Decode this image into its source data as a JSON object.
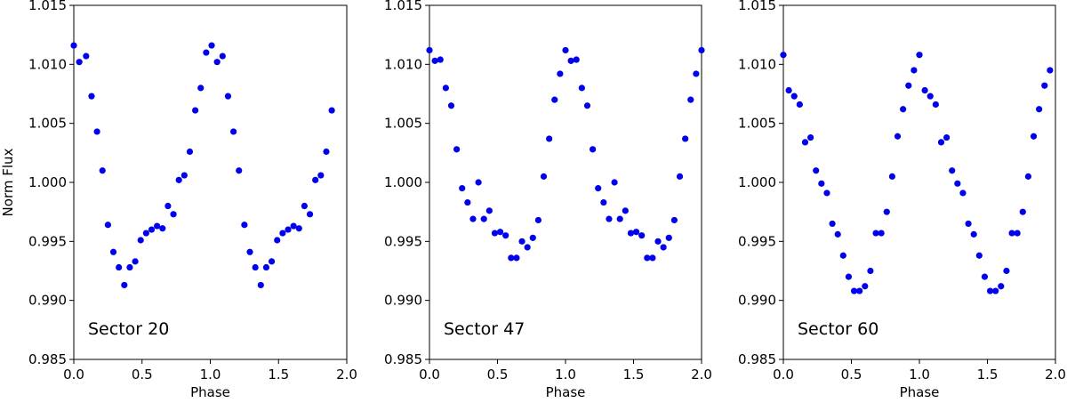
{
  "chart_data": [
    {
      "type": "scatter",
      "annotation": "Sector 20",
      "xlabel": "Phase",
      "ylabel": "Norm Flux",
      "xlim": [
        0.0,
        2.0
      ],
      "ylim": [
        0.985,
        1.015
      ],
      "xticks": [
        "0.0",
        "0.5",
        "1.0",
        "1.5",
        "2.0"
      ],
      "yticks": [
        "0.985",
        "0.990",
        "0.995",
        "1.000",
        "1.005",
        "1.010",
        "1.015"
      ],
      "color": "#0000ee",
      "series": [
        {
          "x": [
            0.0,
            0.04,
            0.09,
            0.13,
            0.17,
            0.21,
            0.25,
            0.29,
            0.33,
            0.37,
            0.41,
            0.45,
            0.49,
            0.53,
            0.57,
            0.61,
            0.65,
            0.69,
            0.73,
            0.77,
            0.81,
            0.85,
            0.89,
            0.93,
            0.97,
            1.01,
            1.05,
            1.09,
            1.13,
            1.17,
            1.21,
            1.25,
            1.29,
            1.33,
            1.37,
            1.41,
            1.45,
            1.49,
            1.53,
            1.57,
            1.61,
            1.65,
            1.69,
            1.73,
            1.77,
            1.81,
            1.85,
            1.89
          ],
          "y": [
            1.0116,
            1.0102,
            1.0107,
            1.0073,
            1.0043,
            1.001,
            0.9964,
            0.9941,
            0.9928,
            0.9913,
            0.9928,
            0.9933,
            0.9951,
            0.9957,
            0.996,
            0.9963,
            0.9961,
            0.998,
            0.9973,
            1.0002,
            1.0006,
            1.0026,
            1.0061,
            1.008,
            1.011,
            1.0116,
            1.0102,
            1.0107,
            1.0073,
            1.0043,
            1.001,
            0.9964,
            0.9941,
            0.9928,
            0.9913,
            0.9928,
            0.9933,
            0.9951,
            0.9957,
            0.996,
            0.9963,
            0.9961,
            0.998,
            0.9973,
            1.0002,
            1.0006,
            1.0026,
            1.0061
          ]
        }
      ]
    },
    {
      "type": "scatter",
      "annotation": "Sector 47",
      "xlabel": "Phase",
      "ylabel": "",
      "xlim": [
        0.0,
        2.0
      ],
      "ylim": [
        0.985,
        1.015
      ],
      "xticks": [
        "0.0",
        "0.5",
        "1.0",
        "1.5",
        "2.0"
      ],
      "yticks": [
        "0.985",
        "0.990",
        "0.995",
        "1.000",
        "1.005",
        "1.010",
        "1.015"
      ],
      "color": "#0000ee",
      "series": [
        {
          "x": [
            0.0,
            0.04,
            0.08,
            0.12,
            0.16,
            0.2,
            0.24,
            0.28,
            0.32,
            0.36,
            0.4,
            0.44,
            0.48,
            0.52,
            0.56,
            0.6,
            0.64,
            0.68,
            0.72,
            0.76,
            0.8,
            0.84,
            0.88,
            0.92,
            0.96,
            1.0,
            1.04,
            1.08,
            1.12,
            1.16,
            1.2,
            1.24,
            1.28,
            1.32,
            1.36,
            1.4,
            1.44,
            1.48,
            1.52,
            1.56,
            1.6,
            1.64,
            1.68,
            1.72,
            1.76,
            1.8,
            1.84,
            1.88,
            1.92,
            1.96,
            2.0
          ],
          "y": [
            1.0112,
            1.0103,
            1.0104,
            1.008,
            1.0065,
            1.0028,
            0.9995,
            0.9983,
            0.9969,
            1.0,
            0.9969,
            0.9976,
            0.9957,
            0.9958,
            0.9955,
            0.9936,
            0.9936,
            0.995,
            0.9945,
            0.9953,
            0.9968,
            1.0005,
            1.0037,
            1.007,
            1.0092,
            1.0112,
            1.0103,
            1.0104,
            1.008,
            1.0065,
            1.0028,
            0.9995,
            0.9983,
            0.9969,
            1.0,
            0.9969,
            0.9976,
            0.9957,
            0.9958,
            0.9955,
            0.9936,
            0.9936,
            0.995,
            0.9945,
            0.9953,
            0.9968,
            1.0005,
            1.0037,
            1.007,
            1.0092,
            1.0112
          ]
        }
      ]
    },
    {
      "type": "scatter",
      "annotation": "Sector 60",
      "xlabel": "Phase",
      "ylabel": "",
      "xlim": [
        0.0,
        2.0
      ],
      "ylim": [
        0.985,
        1.015
      ],
      "xticks": [
        "0.0",
        "0.5",
        "1.0",
        "1.5",
        "2.0"
      ],
      "yticks": [
        "0.985",
        "0.990",
        "0.995",
        "1.000",
        "1.005",
        "1.010",
        "1.015"
      ],
      "color": "#0000ee",
      "series": [
        {
          "x": [
            0.0,
            0.04,
            0.08,
            0.12,
            0.16,
            0.2,
            0.24,
            0.28,
            0.32,
            0.36,
            0.4,
            0.44,
            0.48,
            0.52,
            0.56,
            0.6,
            0.64,
            0.68,
            0.72,
            0.76,
            0.8,
            0.84,
            0.88,
            0.92,
            0.96,
            1.0,
            1.04,
            1.08,
            1.12,
            1.16,
            1.2,
            1.24,
            1.28,
            1.32,
            1.36,
            1.4,
            1.44,
            1.48,
            1.52,
            1.56,
            1.6,
            1.64,
            1.68,
            1.72,
            1.76,
            1.8,
            1.84,
            1.88,
            1.92,
            1.96
          ],
          "y": [
            1.0108,
            1.0078,
            1.0073,
            1.0066,
            1.0034,
            1.0038,
            1.001,
            0.9999,
            0.9991,
            0.9965,
            0.9956,
            0.9938,
            0.992,
            0.9908,
            0.9908,
            0.9912,
            0.9925,
            0.9957,
            0.9957,
            0.9975,
            1.0005,
            1.0039,
            1.0062,
            1.0082,
            1.0095,
            1.0108,
            1.0078,
            1.0073,
            1.0066,
            1.0034,
            1.0038,
            1.001,
            0.9999,
            0.9991,
            0.9965,
            0.9956,
            0.9938,
            0.992,
            0.9908,
            0.9908,
            0.9912,
            0.9925,
            0.9957,
            0.9957,
            0.9975,
            1.0005,
            1.0039,
            1.0062,
            1.0082,
            1.0095
          ]
        }
      ]
    }
  ]
}
